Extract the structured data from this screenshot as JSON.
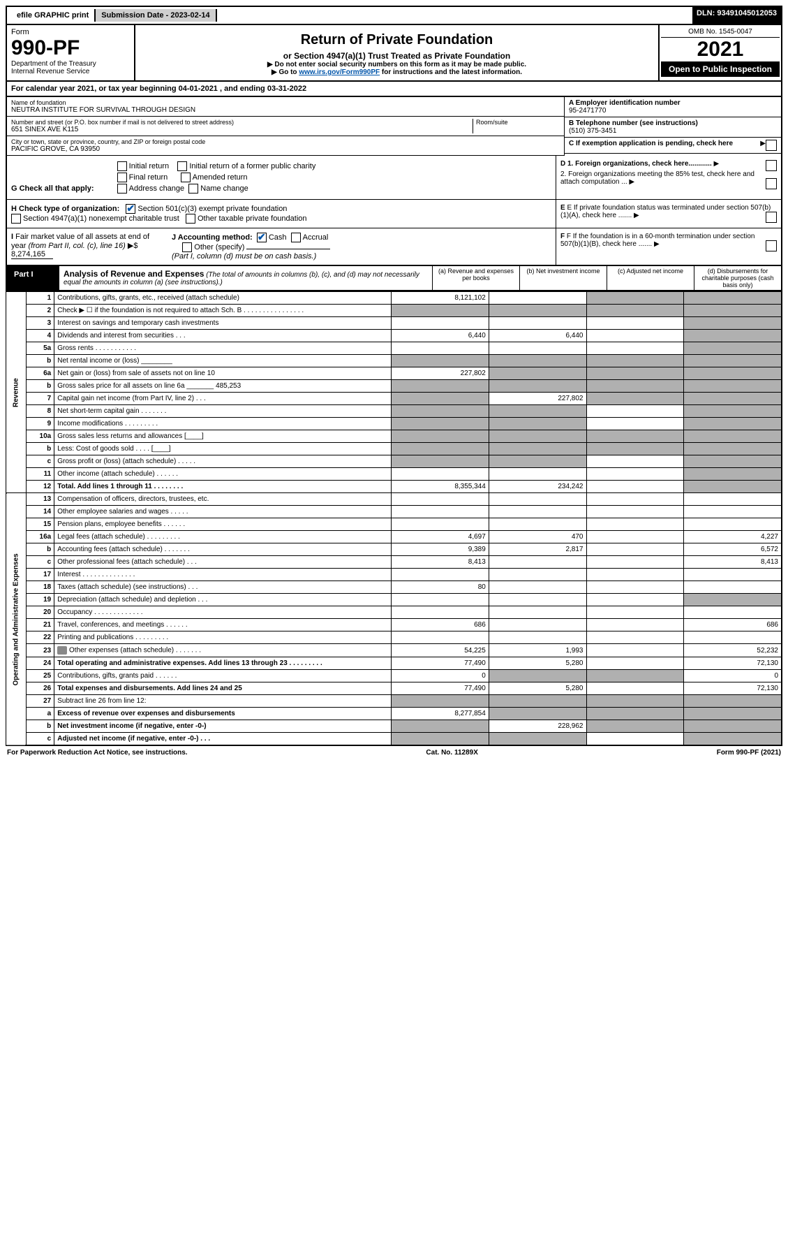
{
  "topbar": {
    "efile": "efile GRAPHIC print",
    "subdate_label": "Submission Date - ",
    "subdate": "2023-02-14",
    "dln_label": "DLN: ",
    "dln": "93491045012053"
  },
  "header": {
    "form_label": "Form",
    "form_num": "990-PF",
    "dept": "Department of the Treasury",
    "irs": "Internal Revenue Service",
    "title": "Return of Private Foundation",
    "subtitle": "or Section 4947(a)(1) Trust Treated as Private Foundation",
    "note1": "▶ Do not enter social security numbers on this form as it may be made public.",
    "note2_a": "▶ Go to ",
    "note2_link": "www.irs.gov/Form990PF",
    "note2_b": " for instructions and the latest information.",
    "omb": "OMB No. 1545-0047",
    "year": "2021",
    "open": "Open to Public Inspection"
  },
  "calyear": {
    "text_a": "For calendar year 2021, or tax year beginning ",
    "begin": "04-01-2021",
    "text_b": " , and ending ",
    "end": "03-31-2022"
  },
  "info": {
    "name_label": "Name of foundation",
    "name": "NEUTRA INSTITUTE FOR SURVIVAL THROUGH DESIGN",
    "addr_label": "Number and street (or P.O. box number if mail is not delivered to street address)",
    "addr": "651 SINEX AVE K115",
    "room_label": "Room/suite",
    "city_label": "City or town, state or province, country, and ZIP or foreign postal code",
    "city": "PACIFIC GROVE, CA  93950",
    "a_label": "A Employer identification number",
    "a_val": "95-2471770",
    "b_label": "B Telephone number (see instructions)",
    "b_val": "(510) 375-3451",
    "c_label": "C If exemption application is pending, check here"
  },
  "g": {
    "label": "G Check all that apply:",
    "opts": [
      "Initial return",
      "Final return",
      "Address change",
      "Initial return of a former public charity",
      "Amended return",
      "Name change"
    ]
  },
  "d": {
    "d1": "D 1. Foreign organizations, check here............",
    "d2": "2. Foreign organizations meeting the 85% test, check here and attach computation ..."
  },
  "h": {
    "label": "H Check type of organization:",
    "o1": "Section 501(c)(3) exempt private foundation",
    "o2": "Section 4947(a)(1) nonexempt charitable trust",
    "o3": "Other taxable private foundation"
  },
  "e": {
    "txt": "E  If private foundation status was terminated under section 507(b)(1)(A), check here ......."
  },
  "i": {
    "label": "I Fair market value of all assets at end of year (from Part II, col. (c), line 16) ▶$",
    "val": "8,274,165"
  },
  "j": {
    "label": "J Accounting method:",
    "cash": "Cash",
    "accrual": "Accrual",
    "other": "Other (specify)",
    "note": "(Part I, column (d) must be on cash basis.)"
  },
  "f": {
    "txt": "F  If the foundation is in a 60-month termination under section 507(b)(1)(B), check here ......."
  },
  "part1": {
    "label": "Part I",
    "title": "Analysis of Revenue and Expenses",
    "note": " (The total of amounts in columns (b), (c), and (d) may not necessarily equal the amounts in column (a) (see instructions).)",
    "col_a": "(a) Revenue and expenses per books",
    "col_b": "(b) Net investment income",
    "col_c": "(c) Adjusted net income",
    "col_d": "(d) Disbursements for charitable purposes (cash basis only)"
  },
  "sections": {
    "revenue": "Revenue",
    "expenses": "Operating and Administrative Expenses"
  },
  "rows": [
    {
      "n": "1",
      "d": "Contributions, gifts, grants, etc., received (attach schedule)",
      "a": "8,121,102",
      "b": "",
      "c": "s",
      "ds": "s"
    },
    {
      "n": "2",
      "d": "Check ▶ ☐ if the foundation is not required to attach Sch. B   .  .  .  .  .  .  .  .  .  .  .  .  .  .  .  .",
      "a": "s",
      "b": "s",
      "c": "s",
      "ds": "s"
    },
    {
      "n": "3",
      "d": "Interest on savings and temporary cash investments",
      "a": "",
      "b": "",
      "c": "",
      "ds": "s"
    },
    {
      "n": "4",
      "d": "Dividends and interest from securities   .   .   .",
      "a": "6,440",
      "b": "6,440",
      "c": "",
      "ds": "s"
    },
    {
      "n": "5a",
      "d": "Gross rents   .   .   .   .   .   .   .   .   .   .   .",
      "a": "",
      "b": "",
      "c": "",
      "ds": "s"
    },
    {
      "n": "b",
      "d": "Net rental income or (loss)  ________",
      "a": "s",
      "b": "s",
      "c": "s",
      "ds": "s"
    },
    {
      "n": "6a",
      "d": "Net gain or (loss) from sale of assets not on line 10",
      "a": "227,802",
      "b": "s",
      "c": "s",
      "ds": "s"
    },
    {
      "n": "b",
      "d": "Gross sales price for all assets on line 6a _______ 485,253",
      "a": "s",
      "b": "s",
      "c": "s",
      "ds": "s"
    },
    {
      "n": "7",
      "d": "Capital gain net income (from Part IV, line 2)   .   .   .",
      "a": "s",
      "b": "227,802",
      "c": "s",
      "ds": "s"
    },
    {
      "n": "8",
      "d": "Net short-term capital gain   .   .   .   .   .   .   .",
      "a": "s",
      "b": "s",
      "c": "",
      "ds": "s"
    },
    {
      "n": "9",
      "d": "Income modifications .   .   .   .   .   .   .   .   .",
      "a": "s",
      "b": "s",
      "c": "",
      "ds": "s"
    },
    {
      "n": "10a",
      "d": "Gross sales less returns and allowances  [____]",
      "a": "s",
      "b": "s",
      "c": "s",
      "ds": "s"
    },
    {
      "n": "b",
      "d": "Less: Cost of goods sold   .   .   .   .  [____]",
      "a": "s",
      "b": "s",
      "c": "s",
      "ds": "s"
    },
    {
      "n": "c",
      "d": "Gross profit or (loss) (attach schedule)   .   .   .   .   .",
      "a": "s",
      "b": "s",
      "c": "",
      "ds": "s"
    },
    {
      "n": "11",
      "d": "Other income (attach schedule)   .   .   .   .   .   .",
      "a": "",
      "b": "",
      "c": "",
      "ds": "s"
    },
    {
      "n": "12",
      "d": "Total. Add lines 1 through 11   .   .   .   .   .   .   .   .",
      "a": "8,355,344",
      "b": "234,242",
      "c": "",
      "ds": "s",
      "bold": true
    },
    {
      "n": "13",
      "d": "Compensation of officers, directors, trustees, etc.",
      "a": "",
      "b": "",
      "c": "",
      "ds": ""
    },
    {
      "n": "14",
      "d": "Other employee salaries and wages   .   .   .   .   .",
      "a": "",
      "b": "",
      "c": "",
      "ds": ""
    },
    {
      "n": "15",
      "d": "Pension plans, employee benefits   .   .   .   .   .   .",
      "a": "",
      "b": "",
      "c": "",
      "ds": ""
    },
    {
      "n": "16a",
      "d": "Legal fees (attach schedule) .   .   .   .   .   .   .   .   .",
      "a": "4,697",
      "b": "470",
      "c": "",
      "ds": "4,227"
    },
    {
      "n": "b",
      "d": "Accounting fees (attach schedule) .   .   .   .   .   .   .",
      "a": "9,389",
      "b": "2,817",
      "c": "",
      "ds": "6,572"
    },
    {
      "n": "c",
      "d": "Other professional fees (attach schedule)   .   .   .",
      "a": "8,413",
      "b": "",
      "c": "",
      "ds": "8,413"
    },
    {
      "n": "17",
      "d": "Interest .   .   .   .   .   .   .   .   .   .   .   .   .   .",
      "a": "",
      "b": "",
      "c": "",
      "ds": ""
    },
    {
      "n": "18",
      "d": "Taxes (attach schedule) (see instructions)   .   .   .",
      "a": "80",
      "b": "",
      "c": "",
      "ds": ""
    },
    {
      "n": "19",
      "d": "Depreciation (attach schedule) and depletion   .   .   .",
      "a": "",
      "b": "",
      "c": "",
      "ds": "s"
    },
    {
      "n": "20",
      "d": "Occupancy .   .   .   .   .   .   .   .   .   .   .   .   .",
      "a": "",
      "b": "",
      "c": "",
      "ds": ""
    },
    {
      "n": "21",
      "d": "Travel, conferences, and meetings .   .   .   .   .   .",
      "a": "686",
      "b": "",
      "c": "",
      "ds": "686"
    },
    {
      "n": "22",
      "d": "Printing and publications .   .   .   .   .   .   .   .   .",
      "a": "",
      "b": "",
      "c": "",
      "ds": ""
    },
    {
      "n": "23",
      "d": "Other expenses (attach schedule) .   .   .   .   .   .   .",
      "a": "54,225",
      "b": "1,993",
      "c": "",
      "ds": "52,232",
      "icon": true
    },
    {
      "n": "24",
      "d": "Total operating and administrative expenses. Add lines 13 through 23   .   .   .   .   .   .   .   .   .",
      "a": "77,490",
      "b": "5,280",
      "c": "",
      "ds": "72,130",
      "bold": true
    },
    {
      "n": "25",
      "d": "Contributions, gifts, grants paid   .   .   .   .   .   .",
      "a": "0",
      "b": "s",
      "c": "s",
      "ds": "0"
    },
    {
      "n": "26",
      "d": "Total expenses and disbursements. Add lines 24 and 25",
      "a": "77,490",
      "b": "5,280",
      "c": "",
      "ds": "72,130",
      "bold": true
    },
    {
      "n": "27",
      "d": "Subtract line 26 from line 12:",
      "a": "s",
      "b": "s",
      "c": "s",
      "ds": "s"
    },
    {
      "n": "a",
      "d": "Excess of revenue over expenses and disbursements",
      "a": "8,277,854",
      "b": "s",
      "c": "s",
      "ds": "s",
      "bold": true
    },
    {
      "n": "b",
      "d": "Net investment income (if negative, enter -0-)",
      "a": "s",
      "b": "228,962",
      "c": "s",
      "ds": "s",
      "bold": true
    },
    {
      "n": "c",
      "d": "Adjusted net income (if negative, enter -0-)   .   .   .",
      "a": "s",
      "b": "s",
      "c": "",
      "ds": "s",
      "bold": true
    }
  ],
  "footer": {
    "left": "For Paperwork Reduction Act Notice, see instructions.",
    "mid": "Cat. No. 11289X",
    "right": "Form 990-PF (2021)"
  }
}
